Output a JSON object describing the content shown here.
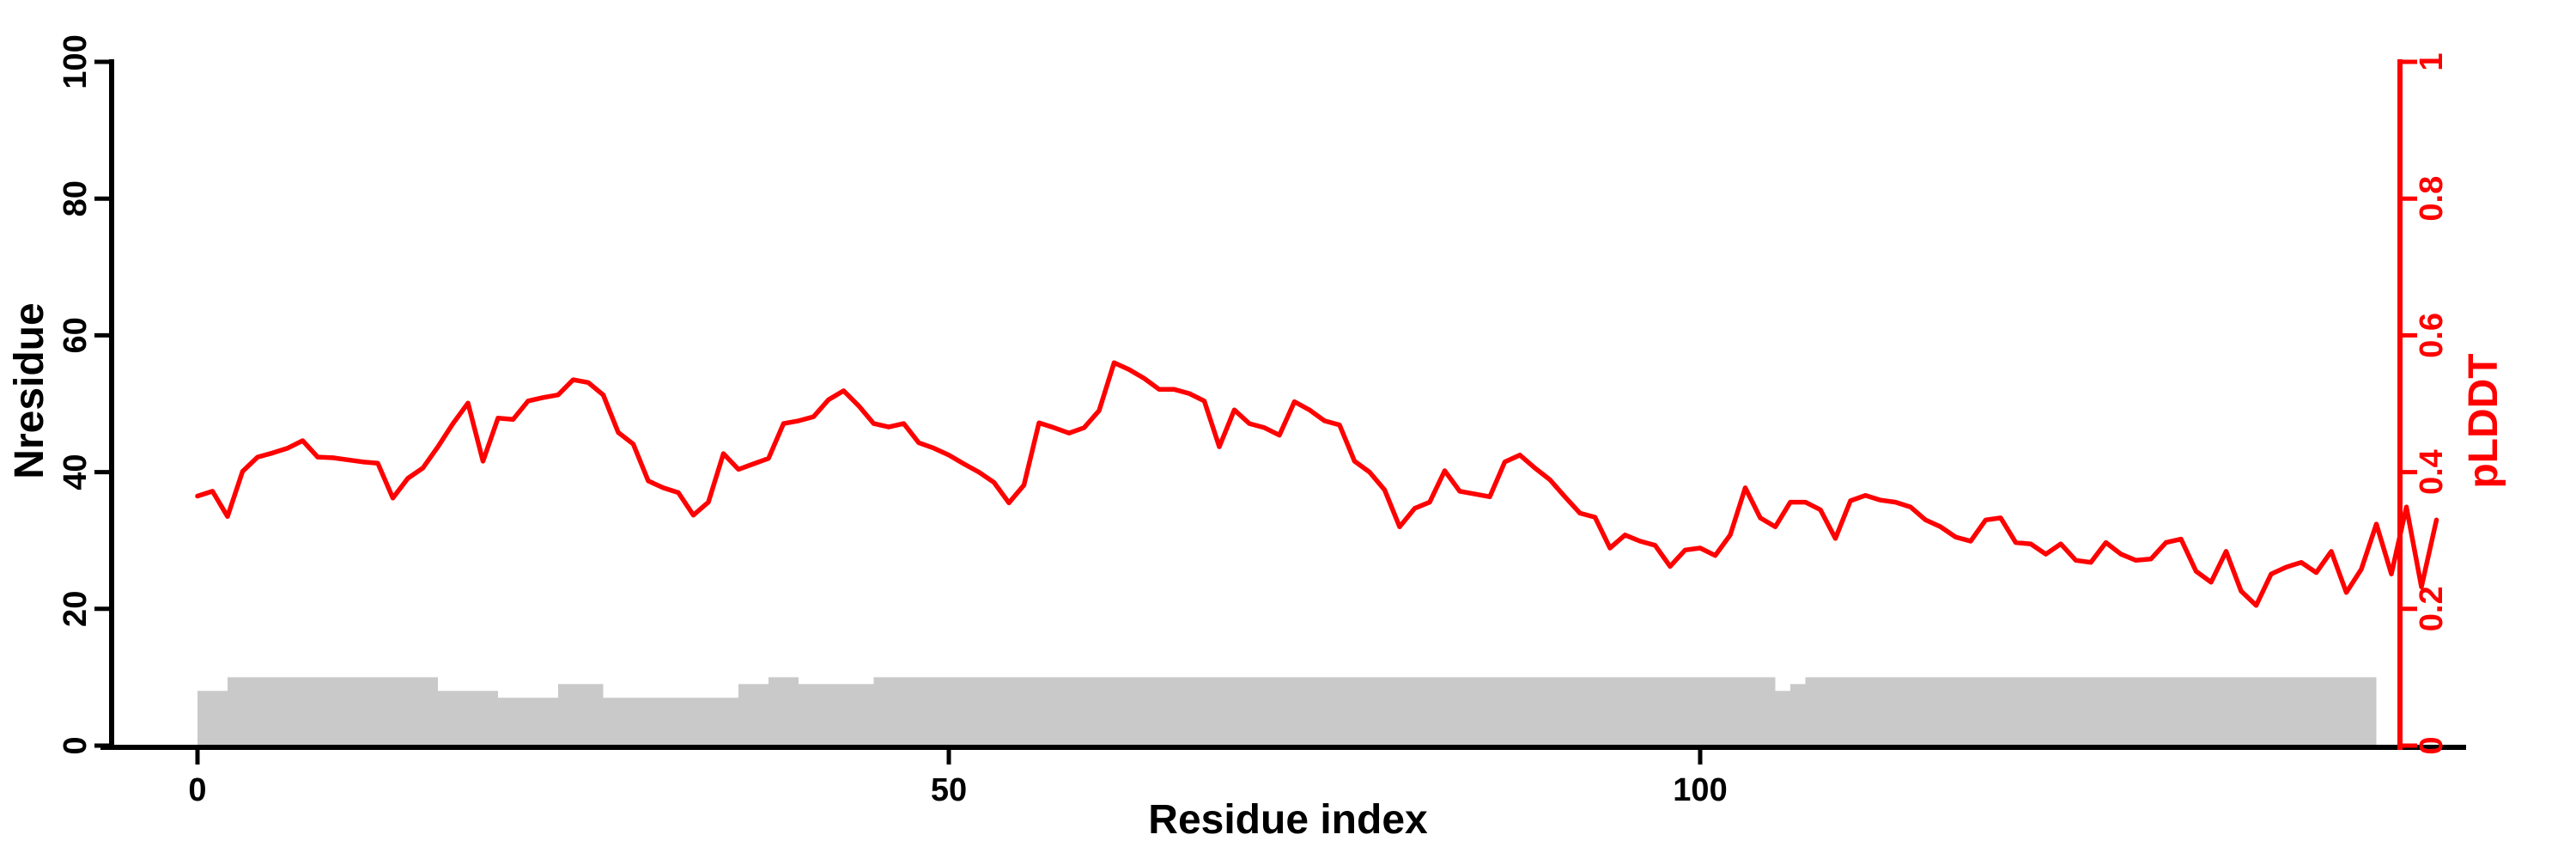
{
  "chart_data": {
    "type": "line",
    "title": "",
    "grid": false,
    "legend": false,
    "background": "#ffffff",
    "x_axis": {
      "label": "Residue index",
      "ticks": [
        0,
        50,
        100
      ],
      "min": 0,
      "max": 145
    },
    "left_axis": {
      "label": "Nresidue",
      "ticks": [
        0,
        20,
        40,
        60,
        80,
        100
      ],
      "min": 0,
      "max": 100,
      "color": "#000000"
    },
    "right_axis": {
      "label": "pLDDT",
      "ticks": [
        0,
        0.2,
        0.4,
        0.6,
        0.8,
        1
      ],
      "min": 0,
      "max": 1,
      "color": "#ff0000"
    },
    "series": [
      {
        "name": "pLDDT",
        "type": "line",
        "axis": "right",
        "color": "#ff0000",
        "x_start": 0,
        "x_step": 1,
        "values": [
          0.365,
          0.372,
          0.335,
          0.401,
          0.422,
          0.428,
          0.435,
          0.446,
          0.422,
          0.421,
          0.418,
          0.415,
          0.413,
          0.362,
          0.391,
          0.406,
          0.437,
          0.471,
          0.501,
          0.416,
          0.479,
          0.477,
          0.504,
          0.509,
          0.513,
          0.535,
          0.531,
          0.513,
          0.458,
          0.441,
          0.387,
          0.377,
          0.37,
          0.337,
          0.356,
          0.427,
          0.404,
          0.412,
          0.42,
          0.471,
          0.475,
          0.481,
          0.506,
          0.519,
          0.497,
          0.471,
          0.466,
          0.471,
          0.443,
          0.435,
          0.425,
          0.412,
          0.4,
          0.385,
          0.355,
          0.381,
          0.472,
          0.465,
          0.457,
          0.465,
          0.49,
          0.56,
          0.55,
          0.537,
          0.521,
          0.521,
          0.515,
          0.504,
          0.437,
          0.491,
          0.471,
          0.465,
          0.454,
          0.503,
          0.491,
          0.475,
          0.469,
          0.416,
          0.4,
          0.374,
          0.32,
          0.347,
          0.356,
          0.402,
          0.372,
          0.368,
          0.364,
          0.415,
          0.425,
          0.406,
          0.389,
          0.364,
          0.34,
          0.334,
          0.289,
          0.308,
          0.299,
          0.293,
          0.262,
          0.286,
          0.289,
          0.278,
          0.308,
          0.377,
          0.333,
          0.32,
          0.356,
          0.356,
          0.345,
          0.303,
          0.358,
          0.366,
          0.359,
          0.356,
          0.349,
          0.33,
          0.32,
          0.305,
          0.299,
          0.33,
          0.333,
          0.297,
          0.295,
          0.28,
          0.295,
          0.271,
          0.268,
          0.297,
          0.28,
          0.271,
          0.273,
          0.297,
          0.302,
          0.255,
          0.239,
          0.284,
          0.226,
          0.205,
          0.251,
          0.261,
          0.268,
          0.253,
          0.284,
          0.224,
          0.258,
          0.324,
          0.251,
          0.349,
          0.232,
          0.33
        ]
      },
      {
        "name": "Nresidue",
        "type": "bar",
        "axis": "left",
        "color": "#c9c9c9",
        "segments": [
          [
            0,
            2,
            8
          ],
          [
            2,
            16,
            10
          ],
          [
            16,
            20,
            8
          ],
          [
            20,
            24,
            7
          ],
          [
            24,
            27,
            9
          ],
          [
            27,
            36,
            7
          ],
          [
            36,
            38,
            9
          ],
          [
            38,
            40,
            10
          ],
          [
            40,
            45,
            9
          ],
          [
            45,
            105,
            10
          ],
          [
            105,
            106,
            8
          ],
          [
            106,
            107,
            9
          ],
          [
            107,
            145,
            10
          ]
        ]
      }
    ]
  }
}
